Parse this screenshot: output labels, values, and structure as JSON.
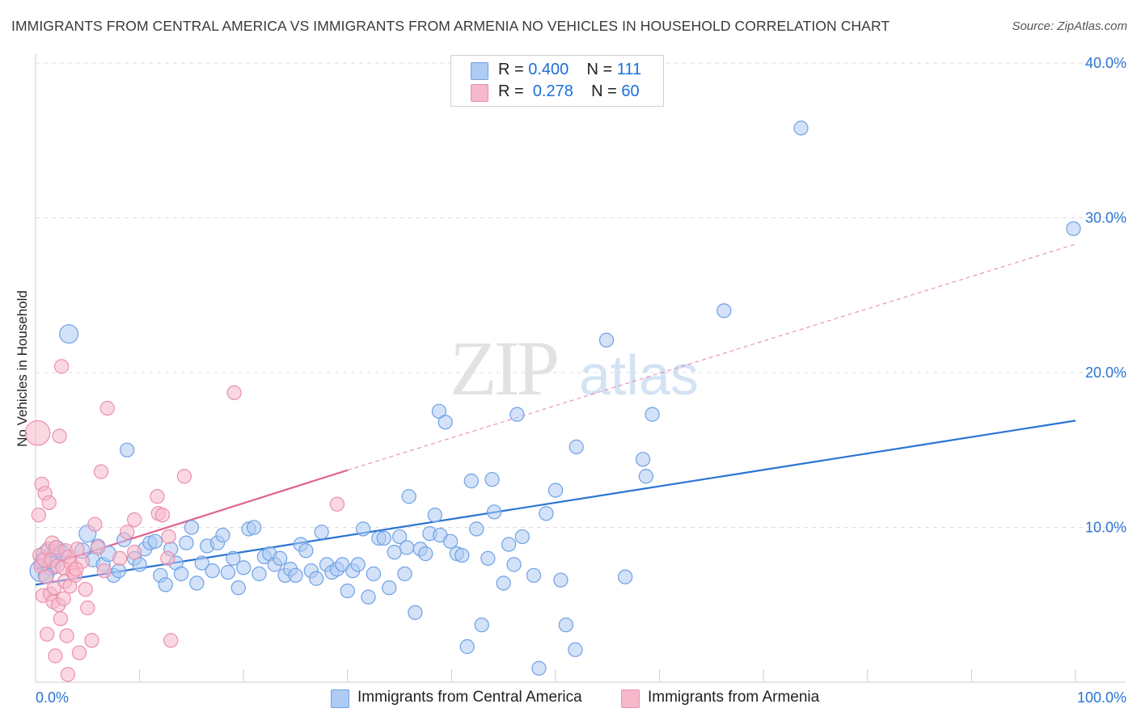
{
  "title": "IMMIGRANTS FROM CENTRAL AMERICA VS IMMIGRANTS FROM ARMENIA NO VEHICLES IN HOUSEHOLD CORRELATION CHART",
  "source": "Source: ZipAtlas.com",
  "watermark": {
    "zip": "ZIP",
    "atlas": "atlas"
  },
  "stats": [
    {
      "r_label": "R =",
      "r_value": "0.400",
      "n_label": "N =",
      "n_value": "111",
      "color": "#aecbf3"
    },
    {
      "r_label": "R =",
      "r_value": "0.278",
      "n_label": "N =",
      "n_value": "60",
      "color": "#f6b8cb"
    }
  ],
  "chart_data": {
    "type": "scatter",
    "title": "IMMIGRANTS FROM CENTRAL AMERICA VS IMMIGRANTS FROM ARMENIA NO VEHICLES IN HOUSEHOLD CORRELATION CHART",
    "xlabel": "",
    "ylabel": "No Vehicles in Household",
    "xlim": [
      0,
      100
    ],
    "ylim": [
      0,
      41
    ],
    "x_tick_labels": {
      "0": "0.0%",
      "100": "100.0%"
    },
    "y_ticks": [
      10,
      20,
      30,
      40
    ],
    "y_tick_labels": [
      "10.0%",
      "20.0%",
      "30.0%",
      "40.0%"
    ],
    "grid": "horizontal dashed",
    "legend_position": "bottom-center",
    "series": [
      {
        "name": "Immigrants from Central America",
        "color": "#6fa1e6",
        "fill": "#aecbf3",
        "trend": {
          "x": [
            0,
            100
          ],
          "y": [
            6.3,
            16.9
          ],
          "style": "solid",
          "color": "#2a74d2"
        },
        "points": [
          [
            0.5,
            7.2,
            14
          ],
          [
            0.8,
            7.8,
            12
          ],
          [
            1.2,
            8.1,
            16
          ],
          [
            1.5,
            7.5,
            12
          ],
          [
            2.0,
            8.6,
            11
          ],
          [
            1.0,
            6.9,
            10
          ],
          [
            2.5,
            8.4,
            10
          ],
          [
            3.2,
            22.5,
            12
          ],
          [
            4.5,
            8.5,
            10
          ],
          [
            5.0,
            9.6,
            11
          ],
          [
            5.5,
            7.9,
            9
          ],
          [
            6.0,
            8.8,
            9
          ],
          [
            6.5,
            7.6,
            9
          ],
          [
            7.0,
            8.3,
            10
          ],
          [
            7.5,
            6.9,
            9
          ],
          [
            8.0,
            7.2,
            9
          ],
          [
            8.5,
            9.2,
            9
          ],
          [
            8.8,
            15.0,
            9
          ],
          [
            9.5,
            8.0,
            9
          ],
          [
            10.0,
            7.6,
            9
          ],
          [
            10.5,
            8.6,
            9
          ],
          [
            11.0,
            9.0,
            9
          ],
          [
            11.5,
            9.1,
            9
          ],
          [
            12.0,
            6.9,
            9
          ],
          [
            12.5,
            6.3,
            9
          ],
          [
            13.0,
            8.6,
            9
          ],
          [
            13.5,
            7.7,
            9
          ],
          [
            14.0,
            7.0,
            9
          ],
          [
            14.5,
            9.0,
            9
          ],
          [
            15.0,
            10.0,
            9
          ],
          [
            15.5,
            6.4,
            9
          ],
          [
            16.0,
            7.7,
            9
          ],
          [
            16.5,
            8.8,
            9
          ],
          [
            17.0,
            7.2,
            9
          ],
          [
            17.5,
            9.0,
            9
          ],
          [
            18.0,
            9.5,
            9
          ],
          [
            18.5,
            7.1,
            9
          ],
          [
            19.0,
            8.0,
            9
          ],
          [
            19.5,
            6.1,
            9
          ],
          [
            20.0,
            7.4,
            9
          ],
          [
            20.5,
            9.9,
            9
          ],
          [
            21.0,
            10.0,
            9
          ],
          [
            21.5,
            7.0,
            9
          ],
          [
            22.0,
            8.1,
            9
          ],
          [
            22.5,
            8.3,
            9
          ],
          [
            23.0,
            7.6,
            9
          ],
          [
            23.5,
            8.0,
            9
          ],
          [
            24.0,
            6.9,
            9
          ],
          [
            24.5,
            7.3,
            9
          ],
          [
            25.0,
            6.9,
            9
          ],
          [
            25.5,
            8.9,
            9
          ],
          [
            26.0,
            8.5,
            9
          ],
          [
            26.5,
            7.2,
            9
          ],
          [
            27.0,
            6.7,
            9
          ],
          [
            27.5,
            9.7,
            9
          ],
          [
            28.0,
            7.6,
            9
          ],
          [
            28.5,
            7.1,
            9
          ],
          [
            29.0,
            7.3,
            9
          ],
          [
            29.5,
            7.6,
            9
          ],
          [
            30.0,
            5.9,
            9
          ],
          [
            30.5,
            7.2,
            9
          ],
          [
            31.0,
            7.6,
            9
          ],
          [
            31.5,
            9.9,
            9
          ],
          [
            32.0,
            5.5,
            9
          ],
          [
            32.5,
            7.0,
            9
          ],
          [
            33.0,
            9.3,
            9
          ],
          [
            33.5,
            9.3,
            9
          ],
          [
            34.0,
            6.1,
            9
          ],
          [
            34.5,
            8.4,
            9
          ],
          [
            35.0,
            9.4,
            9
          ],
          [
            35.5,
            7.0,
            9
          ],
          [
            35.7,
            8.7,
            9
          ],
          [
            35.9,
            12.0,
            9
          ],
          [
            36.5,
            4.5,
            9
          ],
          [
            37.0,
            8.6,
            9
          ],
          [
            37.5,
            8.3,
            9
          ],
          [
            37.9,
            9.6,
            9
          ],
          [
            38.4,
            10.8,
            9
          ],
          [
            38.9,
            9.5,
            9
          ],
          [
            38.8,
            17.5,
            9
          ],
          [
            39.4,
            16.8,
            9
          ],
          [
            39.9,
            9.1,
            9
          ],
          [
            40.5,
            8.3,
            9
          ],
          [
            41.0,
            8.2,
            9
          ],
          [
            41.5,
            2.3,
            9
          ],
          [
            41.9,
            13.0,
            9
          ],
          [
            42.4,
            9.9,
            9
          ],
          [
            42.9,
            3.7,
            9
          ],
          [
            43.5,
            8.0,
            9
          ],
          [
            43.9,
            13.1,
            9
          ],
          [
            44.1,
            11.0,
            9
          ],
          [
            45.0,
            6.4,
            9
          ],
          [
            45.5,
            8.9,
            9
          ],
          [
            46.0,
            7.6,
            9
          ],
          [
            46.3,
            17.3,
            9
          ],
          [
            46.8,
            9.4,
            9
          ],
          [
            47.9,
            6.9,
            9
          ],
          [
            48.4,
            0.9,
            9
          ],
          [
            49.1,
            10.9,
            9
          ],
          [
            50.0,
            12.4,
            9
          ],
          [
            50.5,
            6.6,
            9
          ],
          [
            51.0,
            3.7,
            9
          ],
          [
            51.9,
            2.1,
            9
          ],
          [
            52.0,
            15.2,
            9
          ],
          [
            54.9,
            22.1,
            9
          ],
          [
            56.7,
            6.8,
            9
          ],
          [
            58.4,
            14.4,
            9
          ],
          [
            58.7,
            13.3,
            9
          ],
          [
            59.3,
            17.3,
            9
          ],
          [
            66.2,
            24.0,
            9
          ],
          [
            73.6,
            35.8,
            9
          ],
          [
            99.8,
            29.3,
            9
          ]
        ]
      },
      {
        "name": "Immigrants from Armenia",
        "color": "#ec8fac",
        "fill": "#f6b8cb",
        "trend": {
          "x": [
            0,
            30
          ],
          "y": [
            7.3,
            13.7
          ],
          "style": "solid",
          "extended_to": [
            100,
            28.3
          ],
          "color": "#e0658e"
        },
        "points": [
          [
            0.2,
            16.1,
            16
          ],
          [
            0.3,
            10.8,
            9
          ],
          [
            0.4,
            8.2,
            9
          ],
          [
            0.5,
            7.5,
            9
          ],
          [
            0.6,
            12.8,
            9
          ],
          [
            0.7,
            5.6,
            9
          ],
          [
            0.8,
            7.9,
            9
          ],
          [
            0.9,
            12.2,
            9
          ],
          [
            1.0,
            6.8,
            9
          ],
          [
            1.1,
            3.1,
            9
          ],
          [
            1.2,
            8.6,
            9
          ],
          [
            1.3,
            11.6,
            9
          ],
          [
            1.4,
            5.7,
            9
          ],
          [
            1.5,
            7.9,
            9
          ],
          [
            1.6,
            9.0,
            9
          ],
          [
            1.7,
            5.2,
            9
          ],
          [
            1.8,
            6.1,
            9
          ],
          [
            1.9,
            1.7,
            9
          ],
          [
            2.0,
            8.7,
            9
          ],
          [
            2.1,
            7.5,
            9
          ],
          [
            2.2,
            5.0,
            9
          ],
          [
            2.3,
            15.9,
            9
          ],
          [
            2.4,
            4.1,
            9
          ],
          [
            2.5,
            20.4,
            9
          ],
          [
            2.6,
            7.4,
            9
          ],
          [
            2.7,
            5.4,
            9
          ],
          [
            2.8,
            6.5,
            9
          ],
          [
            2.9,
            8.5,
            9
          ],
          [
            3.0,
            3.0,
            9
          ],
          [
            3.1,
            0.5,
            9
          ],
          [
            3.2,
            8.1,
            9
          ],
          [
            3.3,
            6.2,
            9
          ],
          [
            3.4,
            7.7,
            9
          ],
          [
            3.6,
            7.1,
            9
          ],
          [
            3.8,
            6.9,
            9
          ],
          [
            4.0,
            8.6,
            9
          ],
          [
            4.2,
            1.9,
            9
          ],
          [
            4.5,
            7.8,
            9
          ],
          [
            4.8,
            6.0,
            9
          ],
          [
            5.0,
            4.8,
            9
          ],
          [
            5.4,
            2.7,
            9
          ],
          [
            5.7,
            10.2,
            9
          ],
          [
            6.0,
            8.7,
            9
          ],
          [
            6.3,
            13.6,
            9
          ],
          [
            6.6,
            7.2,
            9
          ],
          [
            6.9,
            17.7,
            9
          ],
          [
            8.1,
            8.0,
            9
          ],
          [
            8.8,
            9.7,
            9
          ],
          [
            9.5,
            8.4,
            9
          ],
          [
            9.5,
            10.5,
            9
          ],
          [
            11.7,
            12.0,
            9
          ],
          [
            11.8,
            10.9,
            9
          ],
          [
            12.2,
            10.8,
            9
          ],
          [
            12.7,
            8.0,
            9
          ],
          [
            12.8,
            9.4,
            9
          ],
          [
            13.0,
            2.7,
            9
          ],
          [
            14.3,
            13.3,
            9
          ],
          [
            19.1,
            18.7,
            9
          ],
          [
            29.0,
            11.5,
            9
          ],
          [
            3.9,
            7.3,
            9
          ]
        ]
      }
    ]
  }
}
